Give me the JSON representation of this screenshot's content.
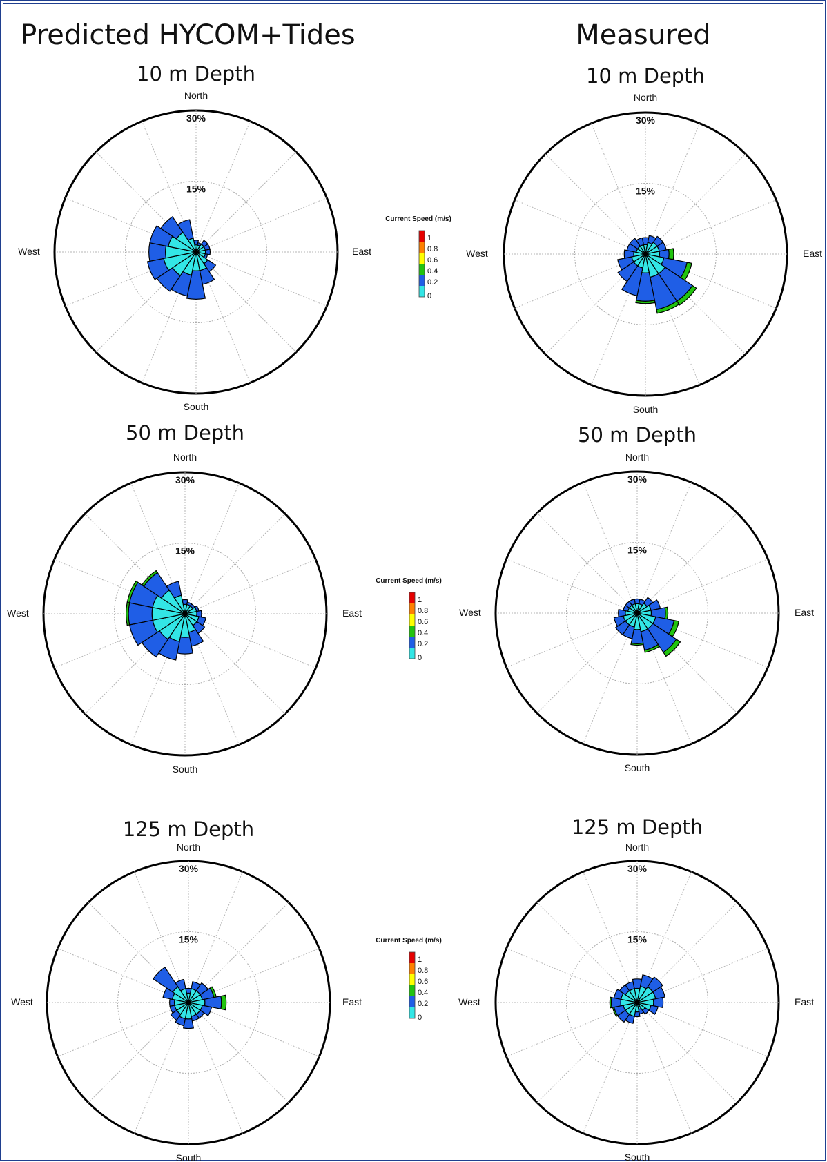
{
  "headers": {
    "left": "Predicted HYCOM+Tides",
    "right": "Measured"
  },
  "directions": {
    "north": "North",
    "south": "South",
    "east": "East",
    "west": "West"
  },
  "ring_labels": [
    "15%",
    "30%"
  ],
  "legend": {
    "title": "Current Speed (m/s)",
    "ticks": [
      "1",
      "0.8",
      "0.6",
      "0.4",
      "0.2",
      "0"
    ],
    "bin_colors": [
      "#33e6e6",
      "#1f5ee6",
      "#22c40f",
      "#ffff00",
      "#ff8000",
      "#e60000"
    ]
  },
  "chart_data": [
    {
      "type": "polar-bar",
      "column": "Predicted HYCOM+Tides",
      "title": "10 m Depth",
      "radial_max": 30,
      "rings": [
        15,
        30
      ],
      "sectors": 16,
      "speed_bins": [
        "0-0.2",
        "0.2-0.4",
        "0.4-0.6"
      ],
      "series": [
        {
          "name": "0-0.2",
          "values": [
            1.5,
            1.5,
            2,
            2,
            2,
            2,
            3,
            4,
            4,
            5,
            6,
            7,
            6.5,
            6,
            5,
            3
          ]
        },
        {
          "name": "0.2-0.4",
          "values": [
            1,
            0.5,
            1,
            1,
            1,
            0.5,
            2,
            3,
            6,
            4.5,
            4,
            3.5,
            3.5,
            4,
            4,
            4
          ]
        },
        {
          "name": "0.4-0.6",
          "values": [
            0,
            0,
            0,
            0,
            0,
            0,
            0,
            0,
            0,
            0,
            0,
            0,
            0,
            0,
            0,
            0
          ]
        }
      ]
    },
    {
      "type": "polar-bar",
      "column": "Measured",
      "title": "10 m Depth",
      "radial_max": 30,
      "rings": [
        15,
        30
      ],
      "sectors": 16,
      "speed_bins": [
        "0-0.2",
        "0.2-0.4",
        "0.4-0.6"
      ],
      "series": [
        {
          "name": "0-0.2",
          "values": [
            2,
            2.5,
            3,
            3,
            3,
            4,
            5,
            5,
            4,
            3,
            3,
            3,
            2.5,
            2,
            2,
            2
          ]
        },
        {
          "name": "0.2-0.4",
          "values": [
            1.5,
            1.5,
            1.5,
            1.5,
            2,
            5,
            7,
            7,
            6,
            6,
            4,
            3,
            2,
            2,
            2,
            1.5
          ]
        },
        {
          "name": "0.4-0.6",
          "values": [
            0,
            0,
            0,
            0,
            1,
            1,
            1,
            0.8,
            0.5,
            0,
            0,
            0,
            0,
            0,
            0,
            0
          ]
        }
      ]
    },
    {
      "type": "polar-bar",
      "column": "Predicted HYCOM+Tides",
      "title": "50 m Depth",
      "radial_max": 30,
      "rings": [
        15,
        30
      ],
      "sectors": 16,
      "speed_bins": [
        "0-0.2",
        "0.2-0.4",
        "0.4-0.6"
      ],
      "series": [
        {
          "name": "0-0.2",
          "values": [
            2,
            2,
            2,
            2.5,
            2.5,
            3,
            3,
            4,
            5,
            6,
            6.5,
            7,
            7,
            7,
            6,
            4
          ]
        },
        {
          "name": "0.2-0.4",
          "values": [
            1,
            0.5,
            0.5,
            0.5,
            1,
            1.5,
            2,
            3,
            3.5,
            4,
            4.5,
            5,
            5,
            5,
            4.5,
            3
          ]
        },
        {
          "name": "0.4-0.6",
          "values": [
            0,
            0,
            0,
            0,
            0,
            0,
            0,
            0,
            0,
            0,
            0,
            0,
            0.5,
            0.5,
            0.5,
            0
          ]
        }
      ]
    },
    {
      "type": "polar-bar",
      "column": "Measured",
      "title": "50 m Depth",
      "radial_max": 30,
      "rings": [
        15,
        30
      ],
      "sectors": 16,
      "speed_bins": [
        "0-0.2",
        "0.2-0.4",
        "0.4-0.6"
      ],
      "series": [
        {
          "name": "0-0.2",
          "values": [
            2,
            2,
            2.5,
            3,
            3,
            4,
            4,
            4,
            3.5,
            3,
            3,
            3,
            2.5,
            2,
            2,
            2
          ]
        },
        {
          "name": "0.2-0.4",
          "values": [
            1,
            1,
            1.5,
            2,
            3,
            4,
            6,
            4,
            3,
            2.5,
            2.5,
            2,
            1.5,
            1,
            1,
            1
          ]
        },
        {
          "name": "0.4-0.6",
          "values": [
            0,
            0,
            0,
            0,
            0.5,
            1,
            1,
            0.5,
            0.3,
            0,
            0,
            0,
            0,
            0,
            0,
            0
          ]
        }
      ]
    },
    {
      "type": "polar-bar",
      "column": "Predicted HYCOM+Tides",
      "title": "125 m Depth",
      "radial_max": 30,
      "rings": [
        15,
        30
      ],
      "sectors": 16,
      "speed_bins": [
        "0-0.2",
        "0.2-0.4",
        "0.4-0.6"
      ],
      "series": [
        {
          "name": "0-0.2",
          "values": [
            2,
            3,
            3,
            3,
            3.5,
            3,
            3,
            3,
            3.5,
            3.5,
            3,
            3,
            3,
            3.5,
            4,
            3
          ]
        },
        {
          "name": "0.2-0.4",
          "values": [
            1,
            1.5,
            2,
            2.5,
            3.5,
            2,
            1,
            1,
            2,
            1.5,
            1.5,
            1,
            1,
            2,
            5,
            2
          ]
        },
        {
          "name": "0.4-0.6",
          "values": [
            0,
            0,
            0,
            0.5,
            1,
            0,
            0,
            0,
            0,
            0,
            0,
            0,
            0,
            0,
            0,
            0
          ]
        }
      ]
    },
    {
      "type": "polar-bar",
      "column": "Measured",
      "title": "125 m Depth",
      "radial_max": 30,
      "rings": [
        15,
        30
      ],
      "sectors": 16,
      "speed_bins": [
        "0-0.2",
        "0.2-0.4",
        "0.4-0.6"
      ],
      "series": [
        {
          "name": "0-0.2",
          "values": [
            3,
            3.5,
            4,
            4,
            3.5,
            3,
            2,
            1.5,
            2,
            3,
            3,
            3,
            3.5,
            3.5,
            3,
            3
          ]
        },
        {
          "name": "0.2-0.4",
          "values": [
            2,
            2.5,
            2.5,
            2,
            2,
            1.5,
            1,
            1,
            1,
            1.5,
            2,
            2,
            2,
            1.5,
            1.5,
            1.5
          ]
        },
        {
          "name": "0.4-0.6",
          "values": [
            0,
            0,
            0,
            0,
            0,
            0,
            0,
            0,
            0,
            0,
            0,
            0.3,
            0.3,
            0,
            0,
            0
          ]
        }
      ]
    }
  ]
}
